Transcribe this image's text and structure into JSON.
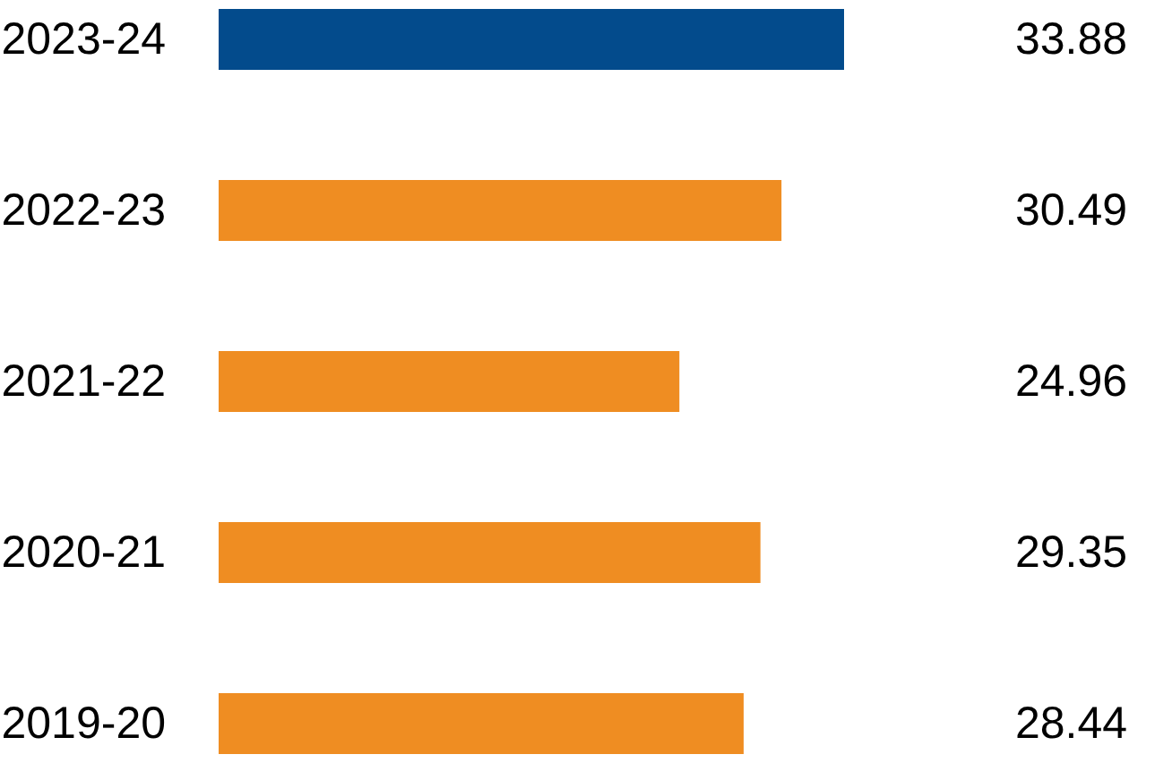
{
  "chart_data": {
    "type": "bar",
    "orientation": "horizontal",
    "categories": [
      "2023-24",
      "2022-23",
      "2021-22",
      "2020-21",
      "2019-20"
    ],
    "values": [
      33.88,
      30.49,
      24.96,
      29.35,
      28.44
    ],
    "colors": [
      "#034b8c",
      "#ef8d22",
      "#ef8d22",
      "#ef8d22",
      "#ef8d22"
    ],
    "data_labels": true,
    "tick_labels": "y"
  }
}
